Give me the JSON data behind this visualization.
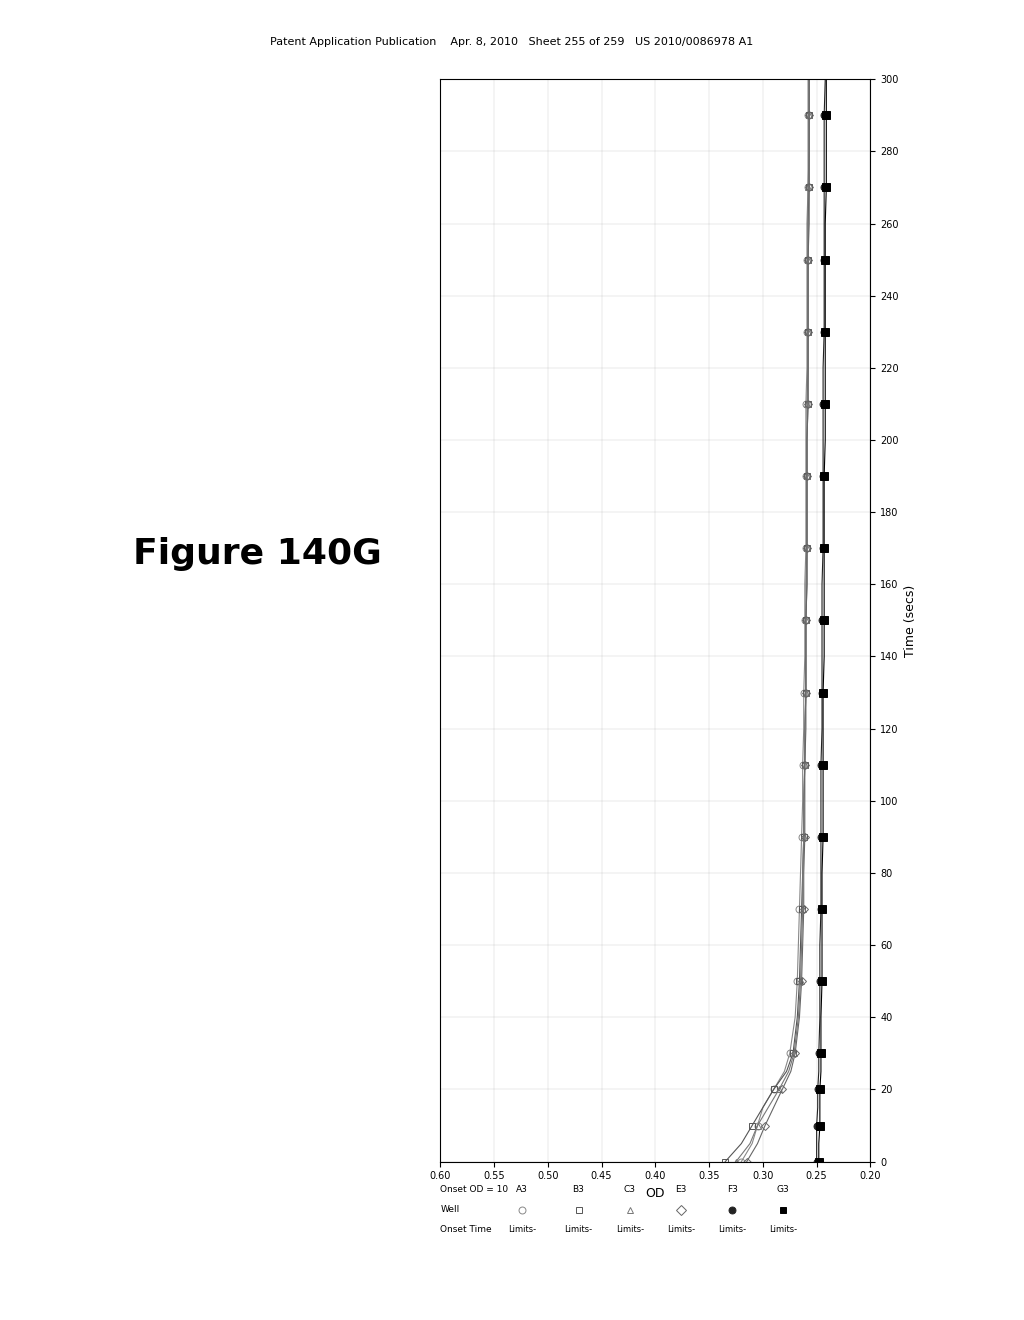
{
  "title_header": "Patent Application Publication    Apr. 8, 2010   Sheet 255 of 259   US 2010/0086978 A1",
  "figure_label": "Figure 140G",
  "xlabel_rotated": "OD",
  "ylabel_rotated": "Time (secs)",
  "xlim": [
    0.6,
    0.2
  ],
  "ylim": [
    0,
    300
  ],
  "xticks": [
    0.6,
    0.55,
    0.5,
    0.45,
    0.4,
    0.35,
    0.3,
    0.25,
    0.2
  ],
  "yticks": [
    0,
    20,
    40,
    60,
    80,
    100,
    120,
    140,
    160,
    180,
    200,
    220,
    240,
    260,
    280,
    300
  ],
  "onset_od": 10,
  "wells": [
    "A3",
    "B3",
    "C3",
    "E3",
    "F3",
    "G3"
  ],
  "series": {
    "A3": {
      "time": [
        0,
        5,
        10,
        15,
        20,
        25,
        30,
        40,
        50,
        60,
        70,
        80,
        90,
        100,
        110,
        120,
        130,
        140,
        150,
        160,
        170,
        180,
        190,
        200,
        210,
        220,
        230,
        240,
        250,
        260,
        270,
        280,
        290,
        300
      ],
      "od": [
        0.32,
        0.31,
        0.305,
        0.3,
        0.29,
        0.28,
        0.275,
        0.27,
        0.268,
        0.267,
        0.266,
        0.265,
        0.264,
        0.263,
        0.263,
        0.262,
        0.262,
        0.261,
        0.261,
        0.261,
        0.26,
        0.26,
        0.26,
        0.26,
        0.26,
        0.259,
        0.259,
        0.259,
        0.259,
        0.259,
        0.258,
        0.258,
        0.258,
        0.258
      ],
      "marker": "o",
      "color": "#888888",
      "fillstyle": "none",
      "markersize": 5,
      "every": 2
    },
    "B3": {
      "time": [
        0,
        5,
        10,
        15,
        20,
        25,
        30,
        40,
        50,
        60,
        70,
        80,
        90,
        100,
        110,
        120,
        130,
        140,
        150,
        160,
        170,
        180,
        190,
        200,
        210,
        220,
        230,
        240,
        250,
        260,
        270,
        280,
        290,
        300
      ],
      "od": [
        0.335,
        0.32,
        0.31,
        0.3,
        0.29,
        0.278,
        0.272,
        0.268,
        0.266,
        0.265,
        0.264,
        0.263,
        0.262,
        0.262,
        0.261,
        0.261,
        0.26,
        0.26,
        0.26,
        0.259,
        0.259,
        0.259,
        0.259,
        0.259,
        0.258,
        0.258,
        0.258,
        0.258,
        0.258,
        0.257,
        0.257,
        0.257,
        0.257,
        0.257
      ],
      "marker": "s",
      "color": "#555555",
      "fillstyle": "none",
      "markersize": 5,
      "every": 2
    },
    "C3": {
      "time": [
        0,
        5,
        10,
        15,
        20,
        25,
        30,
        40,
        50,
        60,
        70,
        80,
        90,
        100,
        110,
        120,
        130,
        140,
        150,
        160,
        170,
        180,
        190,
        200,
        210,
        220,
        230,
        240,
        250,
        260,
        270,
        280,
        290,
        300
      ],
      "od": [
        0.325,
        0.312,
        0.305,
        0.295,
        0.285,
        0.276,
        0.271,
        0.267,
        0.265,
        0.264,
        0.263,
        0.263,
        0.262,
        0.262,
        0.261,
        0.261,
        0.26,
        0.26,
        0.26,
        0.26,
        0.259,
        0.259,
        0.259,
        0.259,
        0.259,
        0.258,
        0.258,
        0.258,
        0.258,
        0.258,
        0.258,
        0.257,
        0.257,
        0.257
      ],
      "marker": "^",
      "color": "#777777",
      "fillstyle": "none",
      "markersize": 5,
      "every": 2
    },
    "E3": {
      "time": [
        0,
        5,
        10,
        15,
        20,
        25,
        30,
        40,
        50,
        60,
        70,
        80,
        90,
        100,
        110,
        120,
        130,
        140,
        150,
        160,
        170,
        180,
        190,
        200,
        210,
        220,
        230,
        240,
        250,
        260,
        270,
        280,
        290,
        300
      ],
      "od": [
        0.315,
        0.305,
        0.298,
        0.29,
        0.282,
        0.274,
        0.27,
        0.266,
        0.264,
        0.263,
        0.262,
        0.262,
        0.261,
        0.261,
        0.261,
        0.26,
        0.26,
        0.26,
        0.26,
        0.259,
        0.259,
        0.259,
        0.259,
        0.259,
        0.258,
        0.258,
        0.258,
        0.258,
        0.258,
        0.258,
        0.257,
        0.257,
        0.257,
        0.257
      ],
      "marker": "D",
      "color": "#666666",
      "fillstyle": "none",
      "markersize": 4,
      "every": 2
    },
    "F3": {
      "time": [
        0,
        5,
        10,
        15,
        20,
        25,
        30,
        40,
        50,
        60,
        70,
        80,
        90,
        100,
        110,
        120,
        130,
        140,
        150,
        160,
        170,
        180,
        190,
        200,
        210,
        220,
        230,
        240,
        250,
        260,
        270,
        280,
        290,
        300
      ],
      "od": [
        0.25,
        0.25,
        0.25,
        0.249,
        0.249,
        0.248,
        0.248,
        0.247,
        0.247,
        0.247,
        0.246,
        0.246,
        0.246,
        0.246,
        0.246,
        0.245,
        0.245,
        0.245,
        0.245,
        0.245,
        0.244,
        0.244,
        0.244,
        0.244,
        0.244,
        0.244,
        0.243,
        0.243,
        0.243,
        0.243,
        0.243,
        0.243,
        0.243,
        0.242
      ],
      "marker": "o",
      "color": "#222222",
      "fillstyle": "full",
      "markersize": 5,
      "every": 2
    },
    "G3": {
      "time": [
        0,
        5,
        10,
        15,
        20,
        25,
        30,
        40,
        50,
        60,
        70,
        80,
        90,
        100,
        110,
        120,
        130,
        140,
        150,
        160,
        170,
        180,
        190,
        200,
        210,
        220,
        230,
        240,
        250,
        260,
        270,
        280,
        290,
        300
      ],
      "od": [
        0.248,
        0.248,
        0.247,
        0.247,
        0.247,
        0.246,
        0.246,
        0.246,
        0.245,
        0.245,
        0.245,
        0.245,
        0.244,
        0.244,
        0.244,
        0.244,
        0.244,
        0.243,
        0.243,
        0.243,
        0.243,
        0.243,
        0.243,
        0.242,
        0.242,
        0.242,
        0.242,
        0.242,
        0.242,
        0.242,
        0.241,
        0.241,
        0.241,
        0.241
      ],
      "marker": "s",
      "color": "#000000",
      "fillstyle": "full",
      "markersize": 6,
      "every": 2
    }
  },
  "background_color": "#ffffff",
  "plot_bg_color": "#ffffff"
}
